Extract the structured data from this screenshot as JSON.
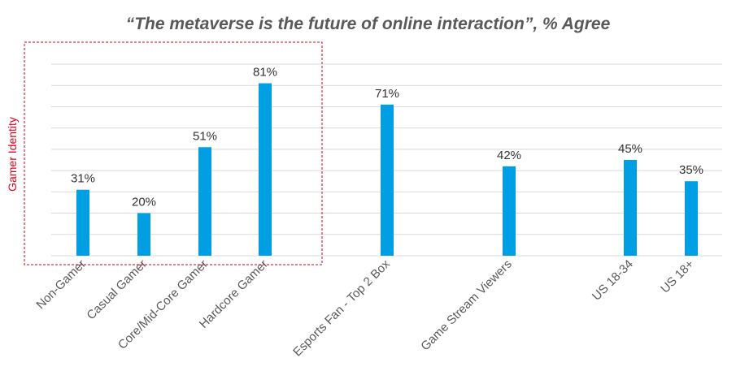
{
  "chart_data": {
    "type": "bar",
    "title": "“The metaverse is the future of online interaction”, % Agree",
    "categories": [
      "Non-Gamer",
      "Casual Gamer",
      "Core/Mid-Core Gamer",
      "Hardcore Gamer",
      "Esports Fan - Top 2 Box",
      "Game Stream Viewers",
      "US 18-34",
      "US 18+"
    ],
    "values": [
      31,
      20,
      51,
      81,
      71,
      42,
      45,
      35
    ],
    "data_labels": [
      "31%",
      "20%",
      "51%",
      "81%",
      "71%",
      "42%",
      "45%",
      "35%"
    ],
    "unit": "%",
    "ylim": [
      0,
      90
    ],
    "grid": true,
    "bar_color": "#009fe3",
    "grid_color": "#d9d9d9",
    "annotation": {
      "label": "Gamer Identity",
      "color": "#e2001a",
      "groups": [
        "Non-Gamer",
        "Casual Gamer",
        "Core/Mid-Core Gamer",
        "Hardcore Gamer"
      ]
    }
  }
}
